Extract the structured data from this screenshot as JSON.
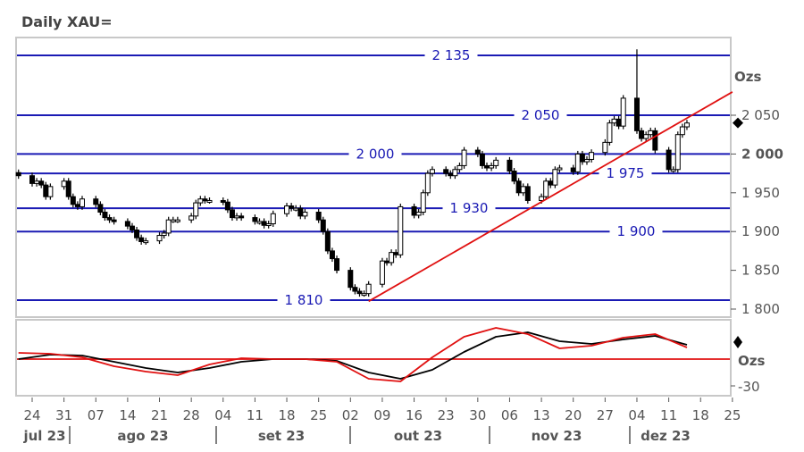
{
  "title": "Daily XAU=",
  "chart_data": [
    {
      "type": "candlestick",
      "title": "Daily XAU=",
      "unit_label": "Ozs",
      "y_ticks": [
        1800,
        1850,
        1900,
        1950,
        2000,
        2050
      ],
      "y_tick_labels": [
        "1 800",
        "1 850",
        "1 900",
        "1 950",
        "2 000",
        "2 050"
      ],
      "ylim": [
        1795,
        2140
      ],
      "x_ticks": [
        "24",
        "31",
        "07",
        "14",
        "21",
        "28",
        "04",
        "11",
        "18",
        "25",
        "02",
        "09",
        "16",
        "23",
        "30",
        "06",
        "13",
        "20",
        "27",
        "04",
        "11",
        "18",
        "25"
      ],
      "months": [
        "jul 23",
        "ago 23",
        "set 23",
        "out 23",
        "nov 23",
        "dez 23"
      ],
      "levels": [
        {
          "value": 2135,
          "label": "2 135"
        },
        {
          "value": 2050,
          "label": "2 050"
        },
        {
          "value": 2000,
          "label": "2 000"
        },
        {
          "value": 1975,
          "label": "1 975"
        },
        {
          "value": 1930,
          "label": "1 930"
        },
        {
          "value": 1900,
          "label": "1 900"
        },
        {
          "value": 1810,
          "label": "1 810"
        }
      ],
      "trendline": [
        [
          "2023-10-06",
          1810
        ],
        [
          "2023-12-25",
          2080
        ]
      ],
      "first_date": "2023-07-21",
      "closes": [
        1972,
        1962,
        1965,
        1960,
        1945,
        1958,
        1965,
        1945,
        1935,
        1932,
        1942,
        1935,
        1925,
        1918,
        1915,
        1913,
        1907,
        1902,
        1892,
        1887,
        1888,
        1895,
        1898,
        1915,
        1915,
        1915,
        1920,
        1937,
        1942,
        1940,
        1940,
        1938,
        1928,
        1918,
        1920,
        1918,
        1913,
        1913,
        1908,
        1910,
        1923,
        1933,
        1930,
        1930,
        1920,
        1925,
        1915,
        1900,
        1875,
        1865,
        1850,
        1828,
        1823,
        1820,
        1820,
        1832,
        1862,
        1860,
        1873,
        1870,
        1932,
        1921,
        1925,
        1950,
        1975,
        1980,
        1975,
        1972,
        1980,
        1985,
        2005,
        2000,
        1985,
        1982,
        1985,
        1992,
        1978,
        1965,
        1950,
        1958,
        1940,
        1945,
        1965,
        1960,
        1980,
        1982,
        1977,
        2000,
        1990,
        1993,
        2002,
        2015,
        2040,
        2045,
        2036,
        2072,
        2030,
        2020,
        2025,
        2030,
        2005,
        1980,
        1980,
        2025,
        2035,
        2040
      ],
      "notable_highs": {
        "2023-12-04": 2135
      },
      "last_marker": 2040
    },
    {
      "type": "line",
      "unit_label": "Ozs",
      "y_tick_labels": [
        "-30"
      ],
      "ylim": [
        -42,
        44
      ],
      "zero_line": 0,
      "x": [
        "2023-07-21",
        "2023-07-28",
        "2023-08-04",
        "2023-08-11",
        "2023-08-18",
        "2023-08-25",
        "2023-09-01",
        "2023-09-08",
        "2023-09-15",
        "2023-09-22",
        "2023-09-29",
        "2023-10-06",
        "2023-10-13",
        "2023-10-20",
        "2023-10-27",
        "2023-11-03",
        "2023-11-10",
        "2023-11-17",
        "2023-11-24",
        "2023-12-01",
        "2023-12-08",
        "2023-12-15"
      ],
      "series": [
        {
          "color": "#000000",
          "values": [
            0,
            5,
            4,
            -3,
            -10,
            -15,
            -10,
            -3,
            0,
            0,
            -2,
            -15,
            -22,
            -12,
            8,
            25,
            30,
            20,
            17,
            22,
            26,
            16
          ]
        },
        {
          "color": "#e01010",
          "values": [
            7,
            6,
            2,
            -8,
            -14,
            -18,
            -6,
            1,
            0,
            0,
            -3,
            -22,
            -25,
            2,
            25,
            35,
            28,
            12,
            15,
            24,
            28,
            13
          ]
        }
      ],
      "last_marker": 15
    }
  ],
  "colors": {
    "level": "#1a1ab4",
    "trend": "#e01010",
    "frame": "#c8c8c8"
  }
}
